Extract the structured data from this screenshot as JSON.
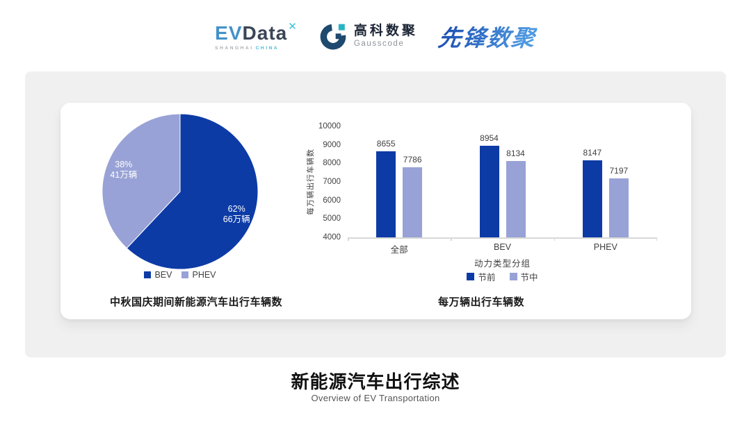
{
  "header": {
    "evdata": {
      "ev": "EV",
      "data": "Data",
      "sup": "✕",
      "sub_left": "SHANGHAI",
      "sub_right": "CHINA"
    },
    "gausscode": {
      "cn": "高科数聚",
      "en": "Gausscode"
    },
    "xianfeng": "先锋数聚"
  },
  "colors": {
    "series_dark_blue": "#0D3BA6",
    "series_light_periwinkle": "#98A2D6",
    "axis_gray": "#D8D8D8",
    "panel_gray": "#F0F0F1"
  },
  "chart_data": [
    {
      "type": "pie",
      "title": "中秋国庆期间新能源汽车出行车辆数",
      "start_angle": "top",
      "direction": "clockwise",
      "slices": [
        {
          "label": "BEV",
          "percent": 62,
          "percent_label": "62%",
          "value_label": "66万辆",
          "color": "#0D3BA6"
        },
        {
          "label": "PHEV",
          "percent": 38,
          "percent_label": "38%",
          "value_label": "41万辆",
          "color": "#98A2D6"
        }
      ],
      "legend_position": "bottom"
    },
    {
      "type": "bar",
      "title": "每万辆出行车辆数",
      "categories": [
        "全部",
        "BEV",
        "PHEV"
      ],
      "series": [
        {
          "name": "节前",
          "color": "#0D3BA6",
          "values": [
            8655,
            8954,
            8147
          ]
        },
        {
          "name": "节中",
          "color": "#98A2D6",
          "values": [
            7786,
            8134,
            7197
          ]
        }
      ],
      "xlabel": "动力类型分组",
      "ylabel": "每万辆出行车辆数",
      "ylim": [
        4000,
        10000
      ],
      "ytick_step": 1000,
      "grid": false,
      "legend_position": "bottom"
    }
  ],
  "footer": {
    "title": "新能源汽车出行综述",
    "subtitle": "Overview of EV Transportation"
  }
}
